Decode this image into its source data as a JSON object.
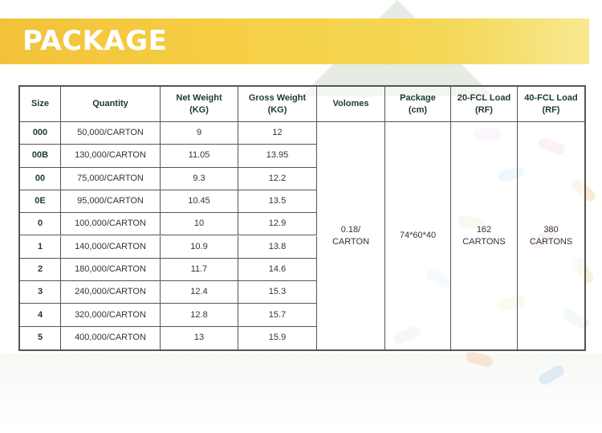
{
  "banner": {
    "title": "PACKAGE"
  },
  "table": {
    "headers": {
      "size": "Size",
      "quantity": "Quantity",
      "net_weight": [
        "Net Weight",
        "(KG)"
      ],
      "gross_weight": [
        "Gross Weight",
        "(KG)"
      ],
      "volumes": "Volomes",
      "package": [
        "Package",
        "(cm)"
      ],
      "fcl20": [
        "20-FCL Load",
        "(RF)"
      ],
      "fcl40": [
        "40-FCL Load",
        "(RF)"
      ]
    },
    "rows": [
      {
        "size": "000",
        "quantity": "50,000/CARTON",
        "net": "9",
        "gross": "12"
      },
      {
        "size": "00B",
        "quantity": "130,000/CARTON",
        "net": "11.05",
        "gross": "13.95"
      },
      {
        "size": "00",
        "quantity": "75,000/CARTON",
        "net": "9.3",
        "gross": "12.2"
      },
      {
        "size": "0E",
        "quantity": "95,000/CARTON",
        "net": "10.45",
        "gross": "13.5"
      },
      {
        "size": "0",
        "quantity": "100,000/CARTON",
        "net": "10",
        "gross": "12.9"
      },
      {
        "size": "1",
        "quantity": "140,000/CARTON",
        "net": "10.9",
        "gross": "13.8"
      },
      {
        "size": "2",
        "quantity": "180,000/CARTON",
        "net": "11.7",
        "gross": "14.6"
      },
      {
        "size": "3",
        "quantity": "240,000/CARTON",
        "net": "12.4",
        "gross": "15.3"
      },
      {
        "size": "4",
        "quantity": "320,000/CARTON",
        "net": "12.8",
        "gross": "15.7"
      },
      {
        "size": "5",
        "quantity": "400,000/CARTON",
        "net": "13",
        "gross": "15.9"
      }
    ],
    "merged": {
      "volumes": [
        "0.18/",
        "CARTON"
      ],
      "package": "74*60*40",
      "fcl20": [
        "162",
        "CARTONS"
      ],
      "fcl40": [
        "380",
        "CARTONS"
      ]
    }
  },
  "colors": {
    "banner": "#f2c23a",
    "header_text": "#1a3b2c",
    "border": "#555555"
  }
}
